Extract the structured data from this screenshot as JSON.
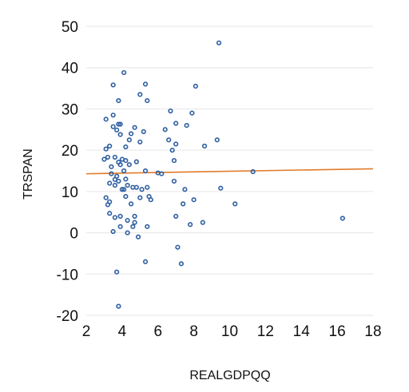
{
  "chart_data": {
    "type": "scatter",
    "xlabel": "REALGDPQQ",
    "ylabel": "TRSPAN",
    "xlim": [
      2,
      18
    ],
    "ylim": [
      -20,
      50
    ],
    "x_ticks": [
      "2",
      "4",
      "6",
      "8",
      "10",
      "12",
      "14",
      "16",
      "18"
    ],
    "y_ticks": [
      "-20",
      "-10",
      "0",
      "10",
      "20",
      "30",
      "40",
      "50"
    ],
    "grid": "horizontal",
    "legend": "none",
    "colors": {
      "points": "#2e5fa1",
      "trendline": "#e07b2b"
    },
    "series": [
      {
        "points": [
          [
            3.0,
            17.8
          ],
          [
            3.1,
            27.5
          ],
          [
            3.1,
            20.3
          ],
          [
            3.2,
            18.3
          ],
          [
            3.1,
            8.5
          ],
          [
            3.2,
            6.8
          ],
          [
            3.3,
            7.5
          ],
          [
            3.3,
            4.7
          ],
          [
            3.3,
            12.0
          ],
          [
            3.3,
            21.0
          ],
          [
            3.4,
            16.0
          ],
          [
            3.4,
            14.3
          ],
          [
            3.5,
            35.8
          ],
          [
            3.5,
            25.7
          ],
          [
            3.5,
            28.5
          ],
          [
            3.5,
            0.3
          ],
          [
            3.6,
            3.7
          ],
          [
            3.6,
            18.3
          ],
          [
            3.6,
            12.9
          ],
          [
            3.6,
            11.5
          ],
          [
            3.7,
            24.9
          ],
          [
            3.7,
            -9.5
          ],
          [
            3.7,
            13.7
          ],
          [
            3.8,
            32.0
          ],
          [
            3.8,
            26.3
          ],
          [
            3.8,
            17.1
          ],
          [
            3.8,
            -17.8
          ],
          [
            3.8,
            12.5
          ],
          [
            3.9,
            26.3
          ],
          [
            3.9,
            23.8
          ],
          [
            3.9,
            16.5
          ],
          [
            3.9,
            1.5
          ],
          [
            3.9,
            4.0
          ],
          [
            4.0,
            10.5
          ],
          [
            4.0,
            17.8
          ],
          [
            4.1,
            38.8
          ],
          [
            4.1,
            10.5
          ],
          [
            4.1,
            15.0
          ],
          [
            4.2,
            20.8
          ],
          [
            4.2,
            17.5
          ],
          [
            4.2,
            13.0
          ],
          [
            4.2,
            8.8
          ],
          [
            4.3,
            11.5
          ],
          [
            4.3,
            3.0
          ],
          [
            4.3,
            0.0
          ],
          [
            4.4,
            22.5
          ],
          [
            4.4,
            16.5
          ],
          [
            4.5,
            24.0
          ],
          [
            4.5,
            7.0
          ],
          [
            4.6,
            11.0
          ],
          [
            4.6,
            1.5
          ],
          [
            4.7,
            2.5
          ],
          [
            4.7,
            4.0
          ],
          [
            4.7,
            25.5
          ],
          [
            4.8,
            17.2
          ],
          [
            4.8,
            11.0
          ],
          [
            4.9,
            -1.0
          ],
          [
            5.0,
            8.5
          ],
          [
            5.0,
            33.5
          ],
          [
            5.0,
            22.0
          ],
          [
            5.1,
            10.5
          ],
          [
            5.2,
            24.5
          ],
          [
            5.3,
            36.0
          ],
          [
            5.3,
            15.0
          ],
          [
            5.3,
            -7.0
          ],
          [
            5.4,
            32.0
          ],
          [
            5.4,
            11.0
          ],
          [
            5.4,
            1.5
          ],
          [
            5.5,
            8.8
          ],
          [
            5.6,
            8.0
          ],
          [
            6.0,
            14.5
          ],
          [
            6.2,
            14.3
          ],
          [
            6.4,
            25.0
          ],
          [
            6.6,
            22.5
          ],
          [
            6.7,
            29.5
          ],
          [
            6.8,
            20.0
          ],
          [
            6.9,
            12.5
          ],
          [
            6.9,
            17.5
          ],
          [
            7.0,
            26.5
          ],
          [
            7.0,
            21.5
          ],
          [
            7.0,
            4.0
          ],
          [
            7.1,
            -3.5
          ],
          [
            7.3,
            -7.5
          ],
          [
            7.4,
            7.0
          ],
          [
            7.5,
            10.5
          ],
          [
            7.6,
            26.0
          ],
          [
            7.8,
            2.0
          ],
          [
            7.9,
            29.0
          ],
          [
            8.0,
            8.0
          ],
          [
            8.1,
            35.5
          ],
          [
            8.5,
            2.5
          ],
          [
            8.6,
            21.0
          ],
          [
            9.3,
            22.5
          ],
          [
            9.4,
            46.0
          ],
          [
            9.5,
            10.8
          ],
          [
            10.3,
            7.0
          ],
          [
            11.3,
            14.8
          ],
          [
            16.3,
            3.5
          ]
        ]
      }
    ],
    "trendline": {
      "x": [
        2,
        18
      ],
      "y": [
        14.3,
        15.5
      ]
    }
  }
}
